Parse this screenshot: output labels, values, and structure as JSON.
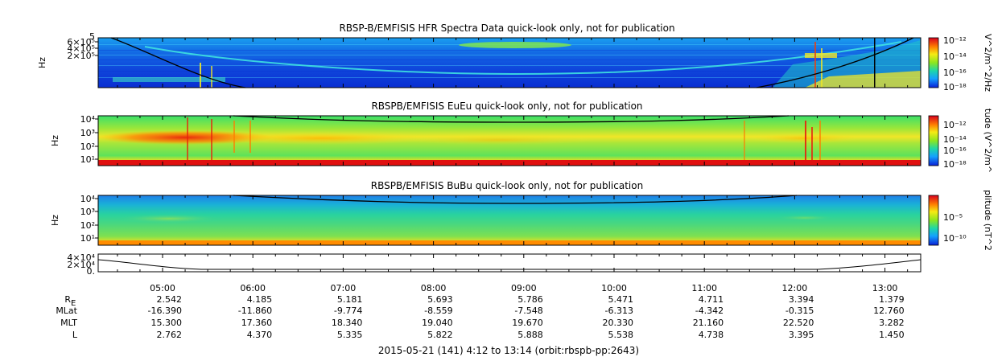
{
  "chart_data": [
    {
      "type": "heatmap",
      "title": "RBSP-B/EMFISIS  HFR Spectra Data quick-look only, not for publication",
      "ylabel": "Hz",
      "ytick_labels": [
        "5",
        "6×10⁵",
        "4×10⁵",
        "2×10⁵"
      ],
      "colorbar_label": "V^2/m^2/Hz",
      "colorbar_ticks": [
        "10⁻¹²",
        "10⁻¹⁴",
        "10⁻¹⁶",
        "10⁻¹⁸"
      ]
    },
    {
      "type": "heatmap",
      "title": "RBSPB/EMFISIS  EuEu quick-look only, not for publication",
      "ylabel": "Hz",
      "ytick_labels": [
        "10⁴",
        "10³",
        "10²",
        "10¹"
      ],
      "colorbar_label": "tude (V^2/m^",
      "colorbar_ticks": [
        "10⁻¹²",
        "10⁻¹⁴",
        "10⁻¹⁶",
        "10⁻¹⁸"
      ]
    },
    {
      "type": "heatmap",
      "title": "RBSPB/EMFISIS  BuBu quick-look only, not for publication",
      "ylabel": "Hz",
      "ytick_labels": [
        "10⁴",
        "10³",
        "10²",
        "10¹"
      ],
      "colorbar_label": "plitude (nT^2",
      "colorbar_ticks": [
        "10⁻⁵",
        "10⁻¹⁰"
      ]
    },
    {
      "type": "line",
      "ytick_labels": [
        "4×10⁴",
        "2×10⁴",
        "0."
      ]
    }
  ],
  "x_axis": {
    "times": [
      "05:00",
      "06:00",
      "07:00",
      "08:00",
      "09:00",
      "10:00",
      "11:00",
      "12:00",
      "13:00"
    ]
  },
  "ephemeris": {
    "rows": [
      {
        "label": "R",
        "label_sub": "E",
        "values": [
          "2.542",
          "4.185",
          "5.181",
          "5.693",
          "5.786",
          "5.471",
          "4.711",
          "3.394",
          "1.379"
        ]
      },
      {
        "label": "MLat",
        "label_sub": "",
        "values": [
          "-16.390",
          "-11.860",
          "-9.774",
          "-8.559",
          "-7.548",
          "-6.313",
          "-4.342",
          "-0.315",
          "12.760"
        ]
      },
      {
        "label": "MLT",
        "label_sub": "",
        "values": [
          "15.300",
          "17.360",
          "18.340",
          "19.040",
          "19.670",
          "20.330",
          "21.160",
          "22.520",
          "3.282"
        ]
      },
      {
        "label": "L",
        "label_sub": "",
        "values": [
          "2.762",
          "4.370",
          "5.335",
          "5.822",
          "5.888",
          "5.538",
          "4.738",
          "3.395",
          "1.450"
        ]
      }
    ]
  },
  "footer": "2015-05-21 (141) 4:12 to 13:14 (orbit:rbspb-pp:2643)",
  "colors": {
    "spectrum_low": "#0a1fd6",
    "spectrum_mid": "#1ed7a8",
    "spectrum_high": "#e61e0a",
    "colorbar_stops": [
      "#d7001e",
      "#ff7f00",
      "#f5eb14",
      "#8ce61e",
      "#1ed7a8",
      "#14a0ff",
      "#0a1fd6"
    ]
  }
}
